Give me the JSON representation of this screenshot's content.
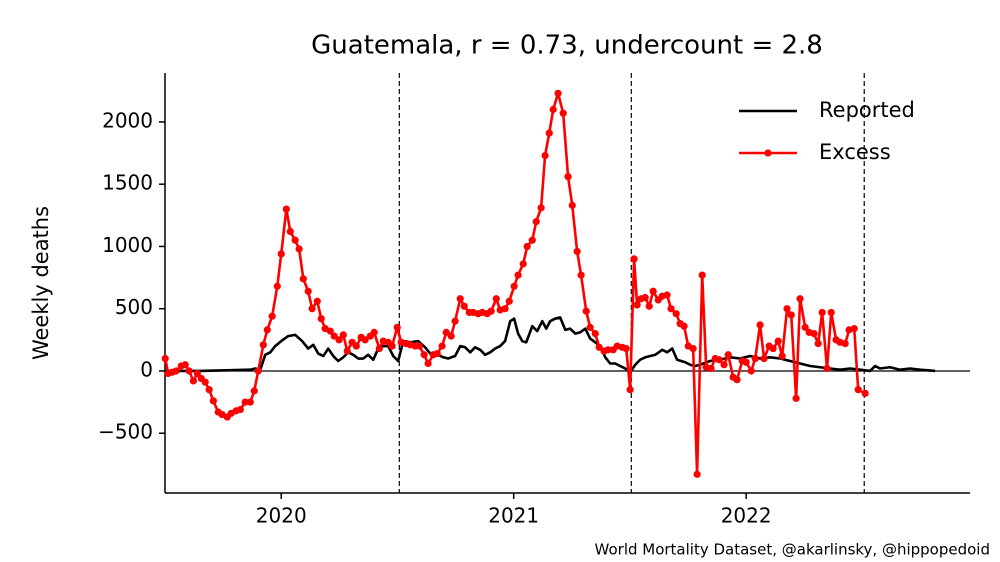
{
  "chart_data": {
    "type": "line",
    "title": "Guatemala, r = 0.73, undercount = 2.8",
    "ylabel": "Weekly deaths",
    "source": "World Mortality Dataset, @akarlinsky, @hippopedoid",
    "xlim": [
      2019.5,
      2022.963
    ],
    "ylim": [
      -980,
      2393
    ],
    "xticks": [
      2020,
      2021,
      2022
    ],
    "yticks": [
      {
        "value": -500,
        "label": "−500"
      },
      0,
      500,
      1000,
      1500,
      2000
    ],
    "hline": 0,
    "vlines": [
      2020.508,
      2021.506,
      2022.508
    ],
    "legend": "upper right",
    "series": [
      {
        "name": "Reported",
        "color": "#000000",
        "markers": false,
        "x": [
          2019.501,
          2019.652,
          2019.867,
          2019.888,
          2019.91,
          2019.931,
          2019.953,
          2019.974,
          2020.0,
          2020.03,
          2020.06,
          2020.09,
          2020.116,
          2020.138,
          2020.159,
          2020.181,
          2020.202,
          2020.224,
          2020.245,
          2020.267,
          2020.288,
          2020.31,
          2020.331,
          2020.353,
          2020.374,
          2020.396,
          2020.417,
          2020.439,
          2020.46,
          2020.482,
          2020.503,
          2020.525,
          2020.555,
          2020.589,
          2020.619,
          2020.641,
          2020.675,
          2020.697,
          2020.718,
          2020.748,
          2020.77,
          2020.791,
          2020.813,
          2020.834,
          2020.856,
          2020.877,
          2020.899,
          2020.92,
          2020.942,
          2020.963,
          2020.985,
          2021.002,
          2021.019,
          2021.037,
          2021.054,
          2021.08,
          2021.101,
          2021.123,
          2021.14,
          2021.157,
          2021.178,
          2021.2,
          2021.222,
          2021.243,
          2021.265,
          2021.286,
          2021.308,
          2021.329,
          2021.351,
          2021.372,
          2021.394,
          2021.415,
          2021.437,
          2021.458,
          2021.48,
          2021.501,
          2021.523,
          2021.544,
          2021.566,
          2021.609,
          2021.639,
          2021.66,
          2021.682,
          2021.703,
          2021.738,
          2021.759,
          2021.781,
          2021.802,
          2021.845,
          2021.888,
          2021.931,
          2021.974,
          2022.017,
          2022.06,
          2022.103,
          2022.146,
          2022.189,
          2022.232,
          2022.275,
          2022.318,
          2022.361,
          2022.404,
          2022.447,
          2022.49,
          2022.533,
          2022.555,
          2022.576,
          2022.619,
          2022.662,
          2022.705,
          2022.748,
          2022.813
        ],
        "values": [
          0,
          0,
          10,
          20,
          10,
          130,
          150,
          200,
          240,
          280,
          290,
          240,
          180,
          210,
          140,
          120,
          180,
          120,
          80,
          110,
          150,
          130,
          100,
          100,
          130,
          90,
          180,
          200,
          200,
          120,
          80,
          240,
          230,
          240,
          190,
          140,
          130,
          110,
          100,
          120,
          200,
          190,
          150,
          190,
          170,
          130,
          150,
          180,
          200,
          240,
          400,
          420,
          300,
          240,
          230,
          360,
          320,
          400,
          340,
          400,
          420,
          430,
          330,
          340,
          300,
          310,
          340,
          260,
          230,
          200,
          110,
          60,
          60,
          40,
          20,
          -10,
          50,
          90,
          110,
          130,
          170,
          150,
          180,
          90,
          70,
          50,
          40,
          50,
          80,
          90,
          110,
          100,
          120,
          100,
          110,
          100,
          80,
          60,
          40,
          30,
          20,
          10,
          20,
          10,
          0,
          40,
          20,
          30,
          10,
          20,
          10,
          0
        ]
      },
      {
        "name": "Excess",
        "color": "#ff0000",
        "markers": true,
        "x": [
          2019.501,
          2019.514,
          2019.531,
          2019.548,
          2019.57,
          2019.587,
          2019.604,
          2019.622,
          2019.639,
          2019.656,
          2019.673,
          2019.69,
          2019.708,
          2019.729,
          2019.746,
          2019.768,
          2019.785,
          2019.806,
          2019.824,
          2019.845,
          2019.867,
          2019.884,
          2019.901,
          2019.923,
          2019.94,
          2019.961,
          2019.983,
          2020.0,
          2020.022,
          2020.039,
          2020.06,
          2020.077,
          2020.095,
          2020.116,
          2020.133,
          2020.155,
          2020.172,
          2020.189,
          2020.211,
          2020.228,
          2020.249,
          2020.267,
          2020.284,
          2020.305,
          2020.323,
          2020.344,
          2020.361,
          2020.383,
          2020.4,
          2020.422,
          2020.439,
          2020.46,
          2020.477,
          2020.499,
          2020.516,
          2020.538,
          2020.555,
          2020.576,
          2020.594,
          2020.615,
          2020.632,
          2020.654,
          2020.671,
          2020.692,
          2020.71,
          2020.731,
          2020.748,
          2020.77,
          2020.787,
          2020.809,
          2020.826,
          2020.847,
          2020.865,
          2020.886,
          2020.903,
          2020.925,
          2020.942,
          2020.963,
          2020.981,
          2021.002,
          2021.019,
          2021.041,
          2021.058,
          2021.08,
          2021.097,
          2021.118,
          2021.135,
          2021.153,
          2021.17,
          2021.191,
          2021.213,
          2021.234,
          2021.252,
          2021.273,
          2021.29,
          2021.312,
          2021.329,
          2021.351,
          2021.368,
          2021.389,
          2021.406,
          2021.428,
          2021.445,
          2021.467,
          2021.484,
          2021.501,
          2021.518,
          2021.531,
          2021.548,
          2021.566,
          2021.583,
          2021.6,
          2021.622,
          2021.639,
          2021.66,
          2021.677,
          2021.699,
          2021.716,
          2021.733,
          2021.751,
          2021.772,
          2021.789,
          2021.811,
          2021.828,
          2021.849,
          2021.867,
          2021.884,
          2021.905,
          2021.923,
          2021.944,
          2021.961,
          2021.983,
          2022.0,
          2022.022,
          2022.039,
          2022.06,
          2022.077,
          2022.099,
          2022.116,
          2022.138,
          2022.155,
          2022.176,
          2022.194,
          2022.215,
          2022.232,
          2022.254,
          2022.271,
          2022.292,
          2022.31,
          2022.327,
          2022.348,
          2022.366,
          2022.387,
          2022.404,
          2022.426,
          2022.443,
          2022.465,
          2022.482,
          2022.512
        ],
        "values": [
          100,
          -20,
          -10,
          0,
          40,
          50,
          0,
          -80,
          -20,
          -60,
          -90,
          -150,
          -240,
          -330,
          -350,
          -370,
          -340,
          -320,
          -310,
          -250,
          -250,
          -160,
          0,
          210,
          330,
          440,
          680,
          940,
          1300,
          1120,
          1050,
          980,
          740,
          640,
          500,
          560,
          420,
          340,
          320,
          280,
          250,
          290,
          160,
          230,
          200,
          270,
          250,
          280,
          310,
          180,
          240,
          230,
          200,
          350,
          230,
          220,
          210,
          200,
          200,
          130,
          60,
          130,
          140,
          200,
          310,
          280,
          400,
          580,
          520,
          470,
          470,
          460,
          470,
          460,
          480,
          580,
          490,
          500,
          560,
          680,
          770,
          860,
          1000,
          1050,
          1200,
          1310,
          1730,
          1910,
          2100,
          2230,
          2070,
          1560,
          1330,
          960,
          770,
          480,
          350,
          300,
          190,
          160,
          170,
          170,
          200,
          190,
          180,
          -150,
          900,
          530,
          580,
          590,
          520,
          640,
          570,
          600,
          610,
          500,
          460,
          380,
          360,
          200,
          180,
          -830,
          770,
          30,
          20,
          100,
          90,
          50,
          130,
          -50,
          -70,
          80,
          70,
          0,
          100,
          370,
          100,
          200,
          180,
          240,
          120,
          500,
          450,
          -220,
          580,
          350,
          310,
          300,
          220,
          470,
          20,
          470,
          250,
          230,
          220,
          330,
          340,
          -150,
          -180
        ]
      }
    ]
  }
}
